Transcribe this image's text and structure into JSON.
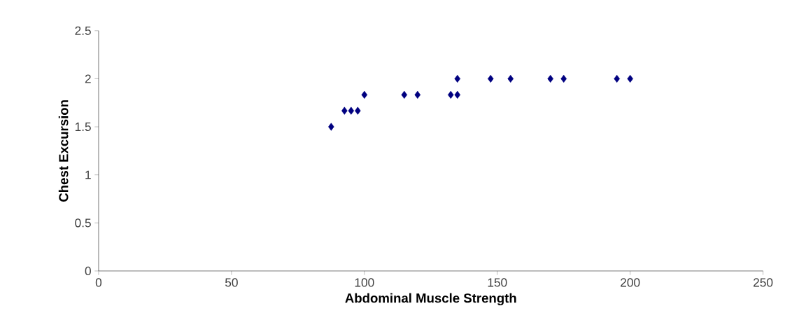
{
  "chart_data": {
    "type": "scatter",
    "xlabel": "Abdominal Muscle Strength",
    "ylabel": "Chest Excursion",
    "x": [
      87.5,
      92.5,
      95,
      97.5,
      100,
      115,
      120,
      132.5,
      135,
      135,
      147.5,
      155,
      170,
      175,
      195,
      200
    ],
    "values": [
      1.5,
      1.667,
      1.667,
      1.667,
      1.833,
      1.833,
      1.833,
      1.833,
      1.833,
      2,
      2,
      2,
      2,
      2,
      2,
      2
    ],
    "color": "#000080",
    "marker": "diamond",
    "xlim": [
      0,
      250
    ],
    "ylim": [
      0,
      2.5
    ],
    "xticks": [
      0,
      50,
      100,
      150,
      200,
      250
    ],
    "yticks": [
      0,
      0.5,
      1,
      1.5,
      2,
      2.5
    ]
  }
}
